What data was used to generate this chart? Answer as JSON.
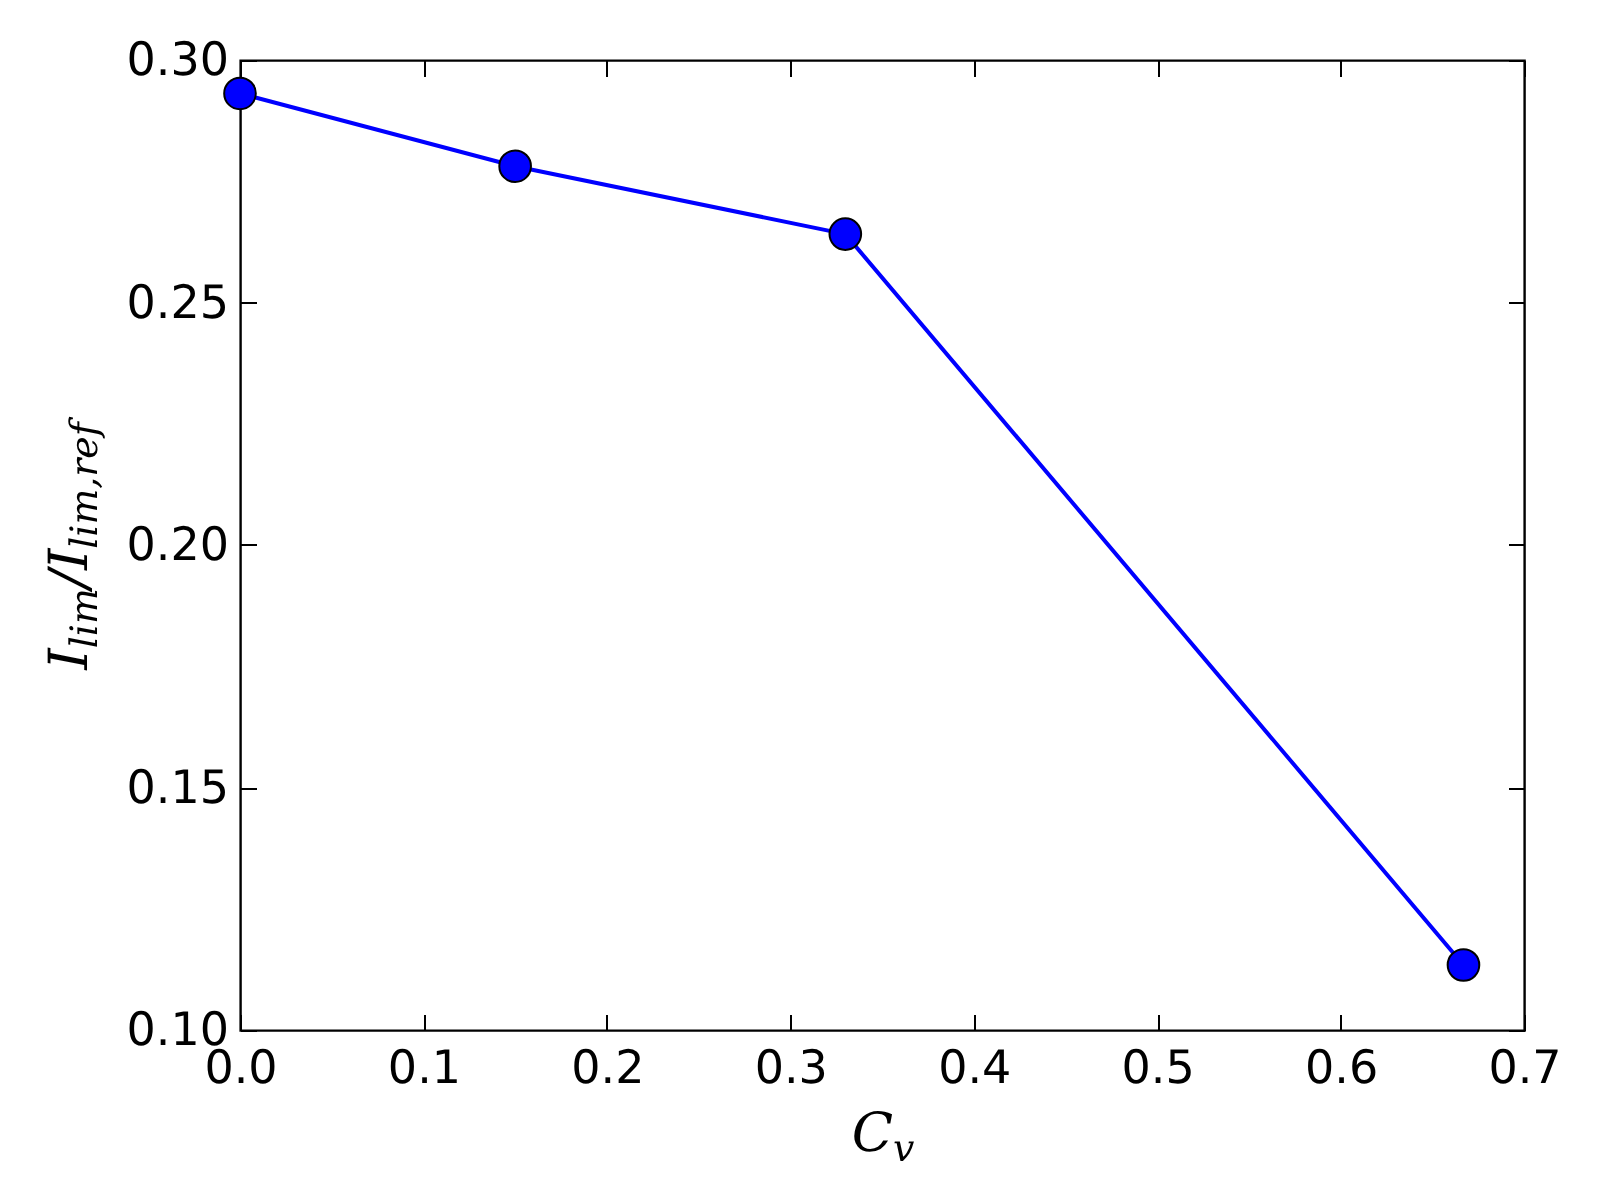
{
  "chart_data": {
    "type": "line",
    "xlabel": "C$_{v}$",
    "ylabel": "I$_{lim}$/I$_{lim,ref}$",
    "x": [
      0,
      0.15,
      0.33,
      0.667
    ],
    "series": [
      {
        "color": "#0000ff",
        "values": [
          0.2931,
          0.2781,
          0.2641,
          0.1134
        ]
      }
    ],
    "xlim": [
      0,
      0.7
    ],
    "xticks": [
      {
        "value": 0,
        "label": "0.0"
      },
      {
        "value": 0.1,
        "label": "0.1"
      },
      {
        "value": 0.2,
        "label": "0.2"
      },
      {
        "value": 0.3,
        "label": "0.3"
      },
      {
        "value": 0.4,
        "label": "0.4"
      },
      {
        "value": 0.5,
        "label": "0.5"
      },
      {
        "value": 0.6,
        "label": "0.6"
      },
      {
        "value": 0.7,
        "label": "0.7"
      }
    ],
    "ylim": [
      0.1,
      0.3
    ],
    "yticks": [
      {
        "value": 0.1,
        "label": "0.10"
      },
      {
        "value": 0.15,
        "label": "0.15"
      },
      {
        "value": 0.2,
        "label": "0.20"
      },
      {
        "value": 0.25,
        "label": "0.25"
      },
      {
        "value": 0.3,
        "label": "0.30"
      }
    ],
    "marker": "circle",
    "line_style": "solid"
  }
}
